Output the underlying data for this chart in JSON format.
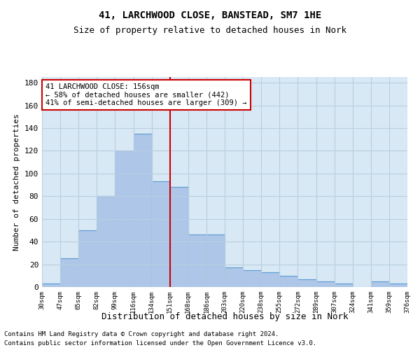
{
  "title": "41, LARCHWOOD CLOSE, BANSTEAD, SM7 1HE",
  "subtitle": "Size of property relative to detached houses in Nork",
  "xlabel": "Distribution of detached houses by size in Nork",
  "ylabel": "Number of detached properties",
  "categories": [
    "30sqm",
    "47sqm",
    "65sqm",
    "82sqm",
    "99sqm",
    "116sqm",
    "134sqm",
    "151sqm",
    "168sqm",
    "186sqm",
    "203sqm",
    "220sqm",
    "238sqm",
    "255sqm",
    "272sqm",
    "289sqm",
    "307sqm",
    "324sqm",
    "341sqm",
    "359sqm",
    "376sqm"
  ],
  "values": [
    3,
    25,
    50,
    80,
    120,
    135,
    93,
    88,
    46,
    46,
    17,
    15,
    13,
    10,
    7,
    5,
    3,
    0,
    5,
    3
  ],
  "bar_color": "#aec6e8",
  "bar_edge_color": "#5b9bd5",
  "vline_index": 6.5,
  "annotation_text": "41 LARCHWOOD CLOSE: 156sqm\n← 58% of detached houses are smaller (442)\n41% of semi-detached houses are larger (309) →",
  "annotation_box_color": "#ffffff",
  "annotation_box_edge_color": "#cc0000",
  "vline_color": "#cc0000",
  "footer1": "Contains HM Land Registry data © Crown copyright and database right 2024.",
  "footer2": "Contains public sector information licensed under the Open Government Licence v3.0.",
  "ylim": [
    0,
    185
  ],
  "yticks": [
    0,
    20,
    40,
    60,
    80,
    100,
    120,
    140,
    160,
    180
  ],
  "grid_color": "#b8cfe0",
  "bg_color": "#d8e8f4",
  "title_fontsize": 10,
  "subtitle_fontsize": 9
}
